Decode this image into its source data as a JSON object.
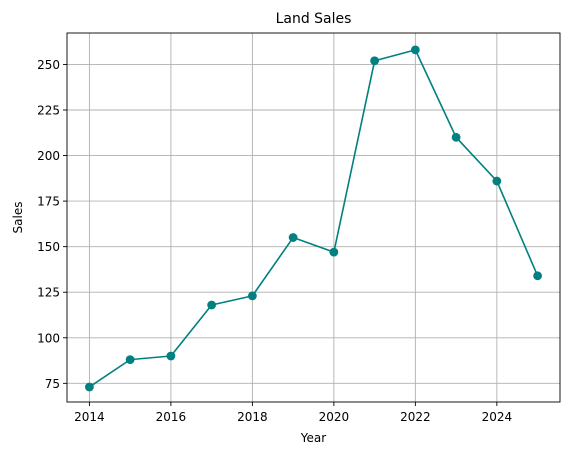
{
  "chart_data": {
    "type": "line",
    "title": "Land Sales",
    "xlabel": "Year",
    "ylabel": "Sales",
    "x": [
      2014,
      2015,
      2016,
      2017,
      2018,
      2019,
      2020,
      2021,
      2022,
      2023,
      2024,
      2025
    ],
    "series": [
      {
        "values": [
          73,
          88,
          90,
          118,
          123,
          155,
          147,
          252,
          258,
          210,
          186,
          134
        ]
      }
    ],
    "xlim": [
      2013.45,
      2025.55
    ],
    "ylim": [
      64.75,
      267.25
    ],
    "xticks": [
      2014,
      2016,
      2018,
      2020,
      2022,
      2024
    ],
    "yticks": [
      75,
      100,
      125,
      150,
      175,
      200,
      225,
      250
    ],
    "grid": true,
    "line_color": "#008080",
    "marker": "circle"
  }
}
